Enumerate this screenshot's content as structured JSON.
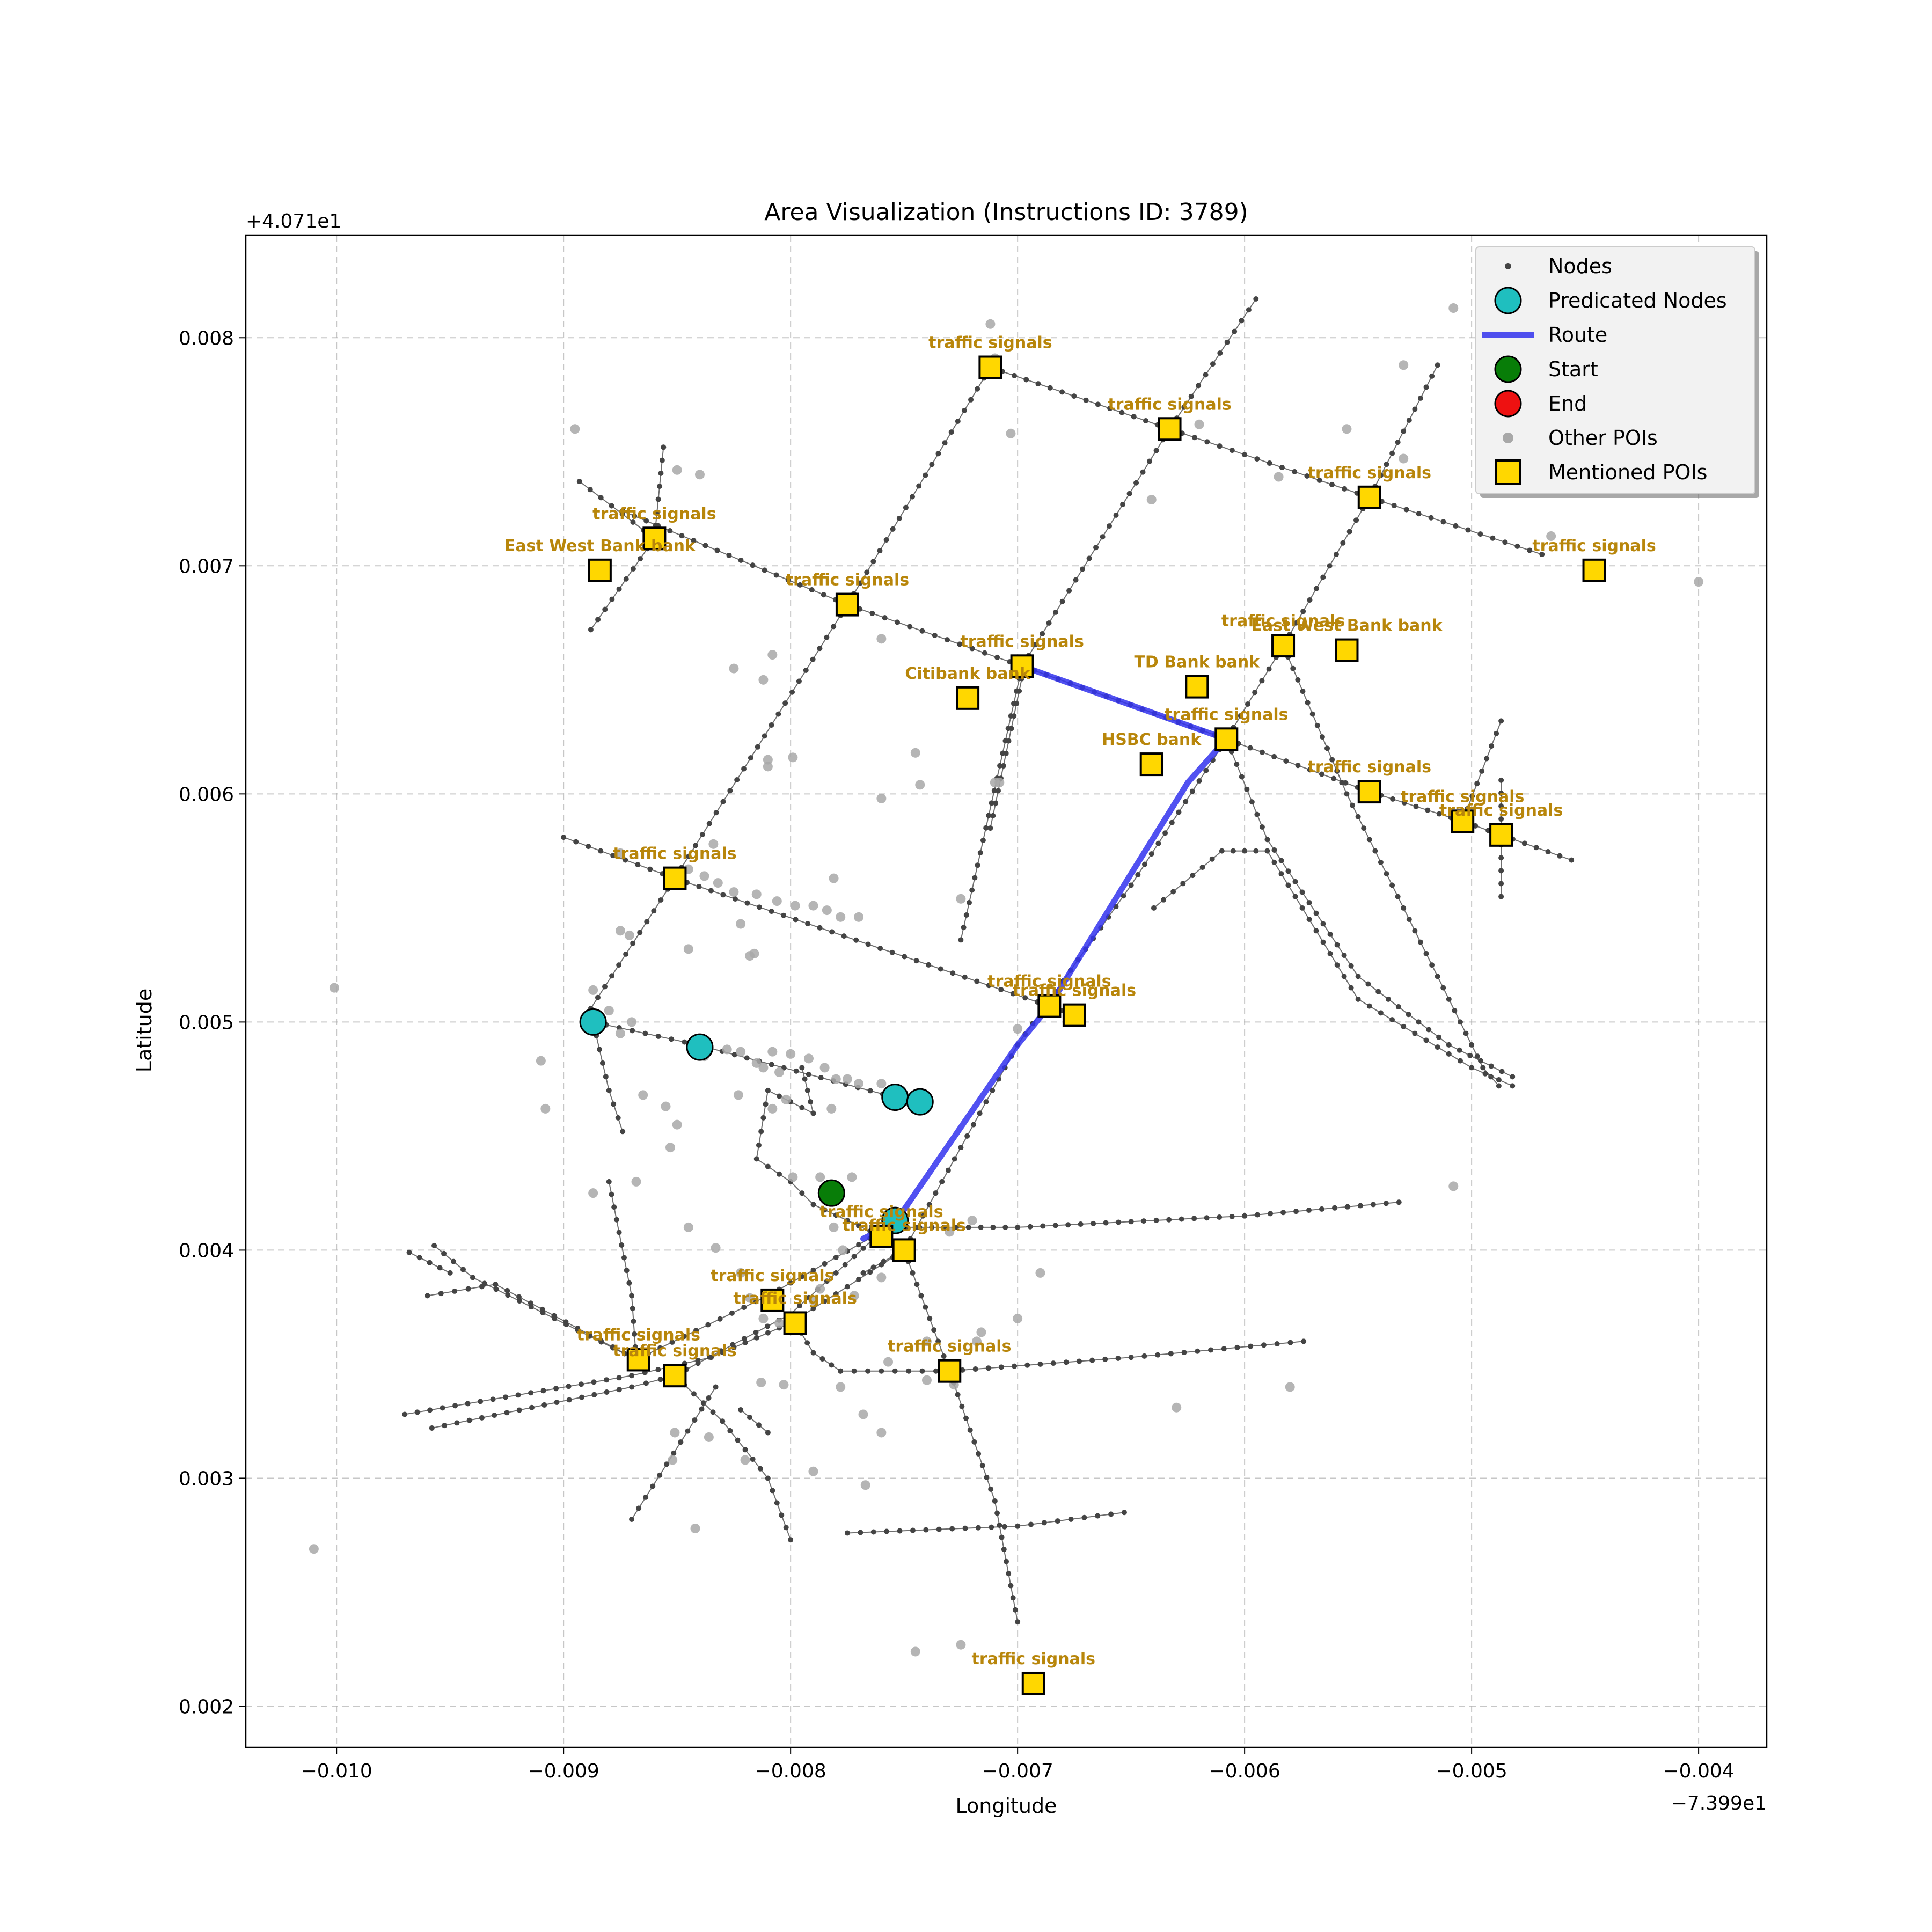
{
  "chart_data": {
    "type": "scatter",
    "title": "Area Visualization (Instructions ID: 3789)",
    "xlabel": "Longitude",
    "ylabel": "Latitude",
    "x_offset_text": "−7.399e1",
    "y_offset_text": "+4.071e1",
    "xlim": [
      -0.0104,
      -0.0037
    ],
    "ylim": [
      0.00182,
      0.00845
    ],
    "x_ticks": [
      -0.01,
      -0.009,
      -0.008,
      -0.007,
      -0.006,
      -0.005,
      -0.004
    ],
    "x_tick_labels": [
      "−0.010",
      "−0.009",
      "−0.008",
      "−0.007",
      "−0.006",
      "−0.005",
      "−0.004"
    ],
    "y_ticks": [
      0.002,
      0.003,
      0.004,
      0.005,
      0.006,
      0.007,
      0.008
    ],
    "y_tick_labels": [
      "0.002",
      "0.003",
      "0.004",
      "0.005",
      "0.006",
      "0.007",
      "0.008"
    ],
    "grid": true,
    "legend_position": "top-right",
    "legend": [
      {
        "label": "Nodes",
        "marker": "dot"
      },
      {
        "label": "Predicated Nodes",
        "marker": "circle-cyan"
      },
      {
        "label": "Route",
        "marker": "line"
      },
      {
        "label": "Start",
        "marker": "circle-green"
      },
      {
        "label": "End",
        "marker": "circle-red"
      },
      {
        "label": "Other POIs",
        "marker": "circle-gray"
      },
      {
        "label": "Mentioned POIs",
        "marker": "square-gold"
      }
    ],
    "colors": {
      "node": "#444444",
      "edge": "#555555",
      "predicated": "#1fbfbf",
      "route": "#3333ee",
      "start": "#087d08",
      "end": "#ee1111",
      "other_poi": "#a8a8a8",
      "mentioned_poi": "#ffd700",
      "poi_label": "#b8860b"
    },
    "roads": [
      [
        [
          -0.00874,
          0.00724
        ],
        [
          -0.00775,
          0.00683
        ],
        [
          -0.00698,
          0.00656
        ],
        [
          -0.00608,
          0.00624
        ],
        [
          -0.00545,
          0.00601
        ],
        [
          -0.00504,
          0.00588
        ],
        [
          -0.00487,
          0.00582
        ],
        [
          -0.00456,
          0.00571
        ]
      ],
      [
        [
          -0.00712,
          0.00787
        ],
        [
          -0.00633,
          0.0076
        ],
        [
          -0.00545,
          0.0073
        ],
        [
          -0.00469,
          0.00705
        ]
      ],
      [
        [
          -0.009,
          0.00581
        ],
        [
          -0.00851,
          0.00563
        ],
        [
          -0.00686,
          0.00507
        ],
        [
          -0.00675,
          0.00503
        ]
      ],
      [
        [
          -0.00887,
          0.005
        ],
        [
          -0.00841,
          0.0049
        ],
        [
          -0.00754,
          0.00467
        ],
        [
          -0.00743,
          0.00465
        ]
      ],
      [
        [
          -0.00888,
          0.00506
        ],
        [
          -0.00851,
          0.00563
        ],
        [
          -0.00775,
          0.00683
        ],
        [
          -0.00712,
          0.00787
        ]
      ],
      [
        [
          -0.00725,
          0.00536
        ],
        [
          -0.00698,
          0.00656
        ],
        [
          -0.00633,
          0.0076
        ],
        [
          -0.00595,
          0.00817
        ]
      ],
      [
        [
          -0.00887,
          0.005
        ],
        [
          -0.0088,
          0.0047
        ],
        [
          -0.00874,
          0.00452
        ]
      ],
      [
        [
          -0.00856,
          0.00752
        ],
        [
          -0.0086,
          0.00712
        ],
        [
          -0.00888,
          0.00672
        ]
      ],
      [
        [
          -0.00893,
          0.00737
        ],
        [
          -0.0086,
          0.00712
        ]
      ],
      [
        [
          -0.00515,
          0.00788
        ],
        [
          -0.00545,
          0.0073
        ],
        [
          -0.00583,
          0.00665
        ],
        [
          -0.00608,
          0.00624
        ],
        [
          -0.0065,
          0.0056
        ],
        [
          -0.007,
          0.0049
        ],
        [
          -0.0075,
          0.004
        ],
        [
          -0.00768,
          0.0039
        ]
      ],
      [
        [
          -0.00583,
          0.00665
        ],
        [
          -0.00555,
          0.006
        ],
        [
          -0.0052,
          0.0053
        ],
        [
          -0.00495,
          0.0048
        ],
        [
          -0.00488,
          0.00472
        ]
      ],
      [
        [
          -0.00608,
          0.00624
        ],
        [
          -0.0059,
          0.0058
        ],
        [
          -0.0055,
          0.0052
        ],
        [
          -0.0051,
          0.0049
        ],
        [
          -0.00482,
          0.00476
        ]
      ],
      [
        [
          -0.0064,
          0.0055
        ],
        [
          -0.0061,
          0.00575
        ],
        [
          -0.0059,
          0.00575
        ],
        [
          -0.0055,
          0.0051
        ],
        [
          -0.005,
          0.0048
        ],
        [
          -0.00482,
          0.00472
        ]
      ],
      [
        [
          -0.00487,
          0.00632
        ],
        [
          -0.00504,
          0.00588
        ]
      ],
      [
        [
          -0.00487,
          0.00555
        ],
        [
          -0.00487,
          0.00606
        ]
      ],
      [
        [
          -0.00754,
          0.0041
        ],
        [
          -0.007,
          0.0041
        ],
        [
          -0.006,
          0.00415
        ],
        [
          -0.00532,
          0.00421
        ]
      ],
      [
        [
          -0.00778,
          0.00347
        ],
        [
          -0.0073,
          0.00347
        ],
        [
          -0.0065,
          0.00353
        ],
        [
          -0.00574,
          0.0036
        ]
      ],
      [
        [
          -0.00775,
          0.00276
        ],
        [
          -0.007,
          0.00279
        ],
        [
          -0.00653,
          0.00285
        ]
      ],
      [
        [
          -0.0075,
          0.004
        ],
        [
          -0.00735,
          0.0036
        ],
        [
          -0.0073,
          0.00347
        ],
        [
          -0.0071,
          0.0029
        ],
        [
          -0.007,
          0.00237
        ]
      ],
      [
        [
          -0.00697,
          0.00656
        ],
        [
          -0.00712,
          0.00585
        ]
      ],
      [
        [
          -0.0097,
          0.00328
        ],
        [
          -0.0087,
          0.00345
        ],
        [
          -0.00835,
          0.00353
        ],
        [
          -0.008,
          0.00368
        ],
        [
          -0.0075,
          0.004
        ]
      ],
      [
        [
          -0.00958,
          0.00322
        ],
        [
          -0.0087,
          0.0034
        ],
        [
          -0.00851,
          0.00345
        ],
        [
          -0.008,
          0.00372
        ],
        [
          -0.0076,
          0.00408
        ]
      ],
      [
        [
          -0.0096,
          0.0038
        ],
        [
          -0.0093,
          0.00385
        ],
        [
          -0.00868,
          0.00352
        ],
        [
          -0.0081,
          0.0038
        ],
        [
          -0.0076,
          0.00408
        ]
      ],
      [
        [
          -0.00957,
          0.00402
        ],
        [
          -0.0094,
          0.00388
        ],
        [
          -0.00868,
          0.00352
        ]
      ],
      [
        [
          -0.00968,
          0.00399
        ],
        [
          -0.0095,
          0.0039
        ]
      ],
      [
        [
          -0.0088,
          0.0043
        ],
        [
          -0.0087,
          0.0038
        ],
        [
          -0.00868,
          0.00352
        ]
      ],
      [
        [
          -0.00851,
          0.00345
        ],
        [
          -0.0083,
          0.00325
        ],
        [
          -0.0081,
          0.003
        ],
        [
          -0.008,
          0.00273
        ]
      ],
      [
        [
          -0.00833,
          0.0034
        ],
        [
          -0.0087,
          0.00282
        ]
      ],
      [
        [
          -0.00822,
          0.0033
        ],
        [
          -0.0081,
          0.0032
        ]
      ],
      [
        [
          -0.00798,
          0.00368
        ],
        [
          -0.0079,
          0.00355
        ],
        [
          -0.00778,
          0.00347
        ]
      ],
      [
        [
          -0.0079,
          0.0046
        ],
        [
          -0.0081,
          0.0047
        ],
        [
          -0.00815,
          0.0044
        ],
        [
          -0.008,
          0.0043
        ],
        [
          -0.0079,
          0.0042
        ],
        [
          -0.0076,
          0.00406
        ]
      ],
      [
        [
          -0.00795,
          0.0048
        ],
        [
          -0.0079,
          0.0046
        ]
      ]
    ],
    "route": [
      [
        -0.00768,
        0.00405
      ],
      [
        -0.00754,
        0.00412
      ],
      [
        -0.007,
        0.0049
      ],
      [
        -0.00686,
        0.00507
      ],
      [
        -0.0065,
        0.00565
      ],
      [
        -0.00625,
        0.00605
      ],
      [
        -0.00608,
        0.00624
      ],
      [
        -0.00698,
        0.00656
      ]
    ],
    "predicated_nodes": [
      [
        -0.00887,
        0.005
      ],
      [
        -0.0084,
        0.00489
      ],
      [
        -0.00754,
        0.00467
      ],
      [
        -0.00743,
        0.00465
      ],
      [
        -0.00754,
        0.00413
      ]
    ],
    "start": [
      -0.00782,
      0.00425
    ],
    "other_pois": [
      [
        -0.01001,
        0.00515
      ],
      [
        -0.0101,
        0.00269
      ],
      [
        -0.0091,
        0.00483
      ],
      [
        -0.00908,
        0.00462
      ],
      [
        -0.00887,
        0.00514
      ],
      [
        -0.0088,
        0.00505
      ],
      [
        -0.00875,
        0.00495
      ],
      [
        -0.0087,
        0.005
      ],
      [
        -0.00865,
        0.00468
      ],
      [
        -0.00855,
        0.00463
      ],
      [
        -0.00853,
        0.00445
      ],
      [
        -0.0085,
        0.00455
      ],
      [
        -0.00843,
        0.0049
      ],
      [
        -0.00838,
        0.00485
      ],
      [
        -0.00828,
        0.00488
      ],
      [
        -0.00822,
        0.00487
      ],
      [
        -0.00815,
        0.00482
      ],
      [
        -0.00812,
        0.0048
      ],
      [
        -0.00808,
        0.00487
      ],
      [
        -0.00805,
        0.00478
      ],
      [
        -0.008,
        0.00486
      ],
      [
        -0.00792,
        0.00484
      ],
      [
        -0.00785,
        0.0048
      ],
      [
        -0.0078,
        0.00475
      ],
      [
        -0.00775,
        0.00475
      ],
      [
        -0.0077,
        0.00473
      ],
      [
        -0.0076,
        0.00473
      ],
      [
        -0.00845,
        0.00567
      ],
      [
        -0.00838,
        0.00564
      ],
      [
        -0.00832,
        0.00561
      ],
      [
        -0.00825,
        0.00557
      ],
      [
        -0.00815,
        0.00556
      ],
      [
        -0.00806,
        0.00553
      ],
      [
        -0.00798,
        0.00551
      ],
      [
        -0.0079,
        0.00551
      ],
      [
        -0.00784,
        0.00549
      ],
      [
        -0.0077,
        0.00546
      ],
      [
        -0.00822,
        0.00543
      ],
      [
        -0.00816,
        0.0053
      ],
      [
        -0.00875,
        0.0054
      ],
      [
        -0.00871,
        0.00538
      ],
      [
        -0.00887,
        0.00425
      ],
      [
        -0.00868,
        0.0043
      ],
      [
        -0.00845,
        0.0041
      ],
      [
        -0.00833,
        0.00401
      ],
      [
        -0.00822,
        0.0039
      ],
      [
        -0.00818,
        0.00379
      ],
      [
        -0.00808,
        0.00375
      ],
      [
        -0.00799,
        0.00432
      ],
      [
        -0.00787,
        0.00432
      ],
      [
        -0.0078,
        0.00425
      ],
      [
        -0.00773,
        0.00432
      ],
      [
        -0.00781,
        0.0041
      ],
      [
        -0.00777,
        0.004
      ],
      [
        -0.00787,
        0.00383
      ],
      [
        -0.00812,
        0.0037
      ],
      [
        -0.00805,
        0.00368
      ],
      [
        -0.0079,
        0.00378
      ],
      [
        -0.00772,
        0.0038
      ],
      [
        -0.0076,
        0.00388
      ],
      [
        -0.0073,
        0.00408
      ],
      [
        -0.0072,
        0.00413
      ],
      [
        -0.0074,
        0.0036
      ],
      [
        -0.00757,
        0.00351
      ],
      [
        -0.00768,
        0.00328
      ],
      [
        -0.00778,
        0.0034
      ],
      [
        -0.00813,
        0.00342
      ],
      [
        -0.00803,
        0.00341
      ],
      [
        -0.00728,
        0.00341
      ],
      [
        -0.0074,
        0.00343
      ],
      [
        -0.00733,
        0.00344
      ],
      [
        -0.00716,
        0.00364
      ],
      [
        -0.00718,
        0.0036
      ],
      [
        -0.007,
        0.0037
      ],
      [
        -0.0069,
        0.0039
      ],
      [
        -0.00767,
        0.00297
      ],
      [
        -0.0079,
        0.00303
      ],
      [
        -0.0082,
        0.00308
      ],
      [
        -0.00851,
        0.0032
      ],
      [
        -0.00836,
        0.00318
      ],
      [
        -0.0076,
        0.0032
      ],
      [
        -0.00852,
        0.00308
      ],
      [
        -0.00842,
        0.00278
      ],
      [
        -0.00745,
        0.00224
      ],
      [
        -0.00725,
        0.00227
      ],
      [
        -0.0063,
        0.00331
      ],
      [
        -0.0058,
        0.0034
      ],
      [
        -0.00508,
        0.00428
      ],
      [
        -0.00825,
        0.00655
      ],
      [
        -0.00808,
        0.00661
      ],
      [
        -0.0076,
        0.00668
      ],
      [
        -0.00703,
        0.00758
      ],
      [
        -0.00712,
        0.00806
      ],
      [
        -0.0071,
        0.00791
      ],
      [
        -0.00745,
        0.00618
      ],
      [
        -0.00743,
        0.00604
      ],
      [
        -0.0071,
        0.00605
      ],
      [
        -0.0076,
        0.00598
      ],
      [
        -0.0081,
        0.00615
      ],
      [
        -0.0081,
        0.00612
      ],
      [
        -0.00799,
        0.00616
      ],
      [
        -0.00778,
        0.00546
      ],
      [
        -0.00781,
        0.00563
      ],
      [
        -0.007,
        0.00497
      ],
      [
        -0.00641,
        0.00729
      ],
      [
        -0.0062,
        0.00762
      ],
      [
        -0.00585,
        0.00739
      ],
      [
        -0.0053,
        0.00788
      ],
      [
        -0.0053,
        0.00747
      ],
      [
        -0.00555,
        0.0076
      ],
      [
        -0.00508,
        0.00813
      ],
      [
        -0.0049,
        0.00758
      ],
      [
        -0.00465,
        0.00713
      ],
      [
        -0.004,
        0.00693
      ],
      [
        -0.00875,
        0.00574
      ],
      [
        -0.00834,
        0.00578
      ],
      [
        -0.00845,
        0.00532
      ],
      [
        -0.00725,
        0.00554
      ],
      [
        -0.00708,
        0.00605
      ],
      [
        -0.00802,
        0.00466
      ],
      [
        -0.00818,
        0.00529
      ],
      [
        -0.00823,
        0.00468
      ],
      [
        -0.00808,
        0.00462
      ],
      [
        -0.00782,
        0.00462
      ],
      [
        -0.00895,
        0.0076
      ],
      [
        -0.0084,
        0.0074
      ],
      [
        -0.0085,
        0.00742
      ],
      [
        -0.00812,
        0.0065
      ]
    ],
    "mentioned_pois": [
      {
        "label": "traffic signals",
        "x": -0.00712,
        "y": 0.00787
      },
      {
        "label": "traffic signals",
        "x": -0.00633,
        "y": 0.0076
      },
      {
        "label": "traffic signals",
        "x": -0.00545,
        "y": 0.0073
      },
      {
        "label": "traffic signals",
        "x": -0.0086,
        "y": 0.00712
      },
      {
        "label": "East West Bank bank",
        "x": -0.00884,
        "y": 0.00698
      },
      {
        "label": "traffic signals",
        "x": -0.00446,
        "y": 0.00698
      },
      {
        "label": "traffic signals",
        "x": -0.00775,
        "y": 0.00683
      },
      {
        "label": "traffic signals",
        "x": -0.00698,
        "y": 0.00656
      },
      {
        "label": "traffic signals",
        "x": -0.00583,
        "y": 0.00665
      },
      {
        "label": "East West Bank bank",
        "x": -0.00555,
        "y": 0.00663
      },
      {
        "label": "TD Bank bank",
        "x": -0.00621,
        "y": 0.00647
      },
      {
        "label": "Citibank bank",
        "x": -0.00722,
        "y": 0.00642
      },
      {
        "label": "traffic signals",
        "x": -0.00608,
        "y": 0.00624
      },
      {
        "label": "HSBC bank",
        "x": -0.00641,
        "y": 0.00613
      },
      {
        "label": "traffic signals",
        "x": -0.00545,
        "y": 0.00601
      },
      {
        "label": "traffic signals",
        "x": -0.00504,
        "y": 0.00588
      },
      {
        "label": "traffic signals",
        "x": -0.00487,
        "y": 0.00582
      },
      {
        "label": "traffic signals",
        "x": -0.00851,
        "y": 0.00563
      },
      {
        "label": "traffic signals",
        "x": -0.00686,
        "y": 0.00507
      },
      {
        "label": "traffic signals",
        "x": -0.00675,
        "y": 0.00503
      },
      {
        "label": "traffic signals",
        "x": -0.0076,
        "y": 0.00406
      },
      {
        "label": "traffic signals",
        "x": -0.0075,
        "y": 0.004
      },
      {
        "label": "traffic signals",
        "x": -0.00808,
        "y": 0.00378
      },
      {
        "label": "traffic signals",
        "x": -0.00798,
        "y": 0.00368
      },
      {
        "label": "traffic signals",
        "x": -0.00867,
        "y": 0.00352
      },
      {
        "label": "traffic signals",
        "x": -0.00851,
        "y": 0.00345
      },
      {
        "label": "traffic signals",
        "x": -0.0073,
        "y": 0.00347
      },
      {
        "label": "traffic signals",
        "x": -0.00693,
        "y": 0.0021
      }
    ]
  }
}
